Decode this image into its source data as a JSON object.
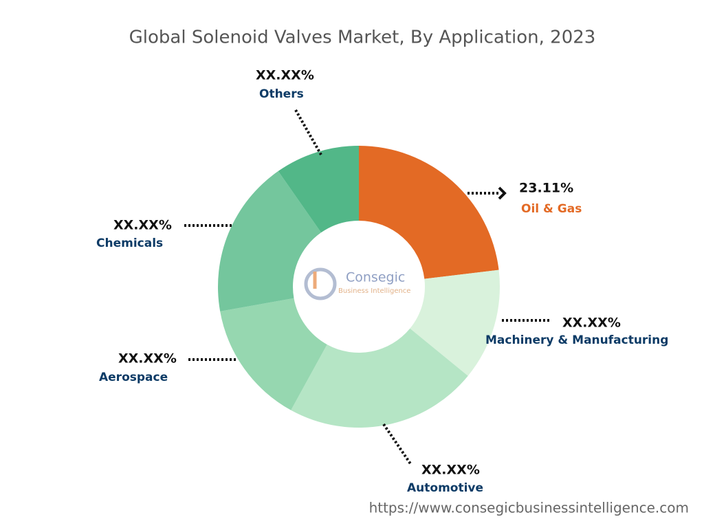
{
  "chart_data": {
    "type": "pie",
    "title": "Global Solenoid Valves Market, By Application, 2023",
    "categories": [
      "Oil & Gas",
      "Machinery & Manufacturing",
      "Automotive",
      "Aerospace",
      "Chemicals",
      "Others"
    ],
    "values": [
      23.11,
      12.8,
      22.1,
      14.2,
      18.1,
      9.7
    ],
    "value_labels": [
      "23.11%",
      "XX.XX%",
      "XX.XX%",
      "XX.XX%",
      "XX.XX%",
      "XX.XX%"
    ],
    "colors": [
      "#e36a25",
      "#d9f2dc",
      "#b5e5c5",
      "#96d7b0",
      "#74c69d",
      "#52b788"
    ],
    "label_colors": [
      "#e36a25",
      "#0d3b66",
      "#0d3b66",
      "#0d3b66",
      "#0d3b66",
      "#0d3b66"
    ]
  },
  "watermark": {
    "name": "Consegic",
    "tagline": "Business Intelligence"
  },
  "source": "https://www.consegicbusinessintelligence.com"
}
